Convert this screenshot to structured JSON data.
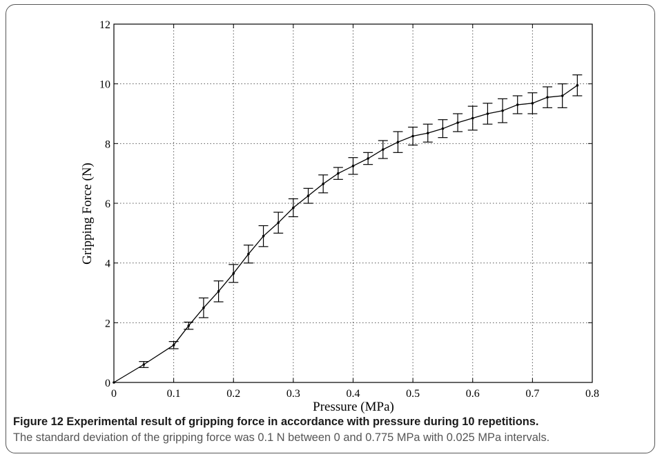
{
  "figure": {
    "caption_title": "Figure 12 Experimental result of gripping force in accordance with pressure during 10 repetitions.",
    "caption_body": "The standard deviation of the gripping force was 0.1 N between 0 and 0.775 MPa with 0.025 MPa intervals."
  },
  "chart_data": {
    "type": "line",
    "xlabel": "Pressure (MPa)",
    "ylabel": "Gripping Force (N)",
    "xlim": [
      0,
      0.8
    ],
    "ylim": [
      0,
      12
    ],
    "xticks": [
      "0",
      "0.1",
      "0.2",
      "0.3",
      "0.4",
      "0.5",
      "0.6",
      "0.7",
      "0.8"
    ],
    "yticks": [
      "0",
      "2",
      "4",
      "6",
      "8",
      "10",
      "12"
    ],
    "grid": true,
    "line_color": "#000000",
    "x": [
      0,
      0.05,
      0.1,
      0.125,
      0.15,
      0.175,
      0.2,
      0.225,
      0.25,
      0.275,
      0.3,
      0.325,
      0.35,
      0.375,
      0.4,
      0.425,
      0.45,
      0.475,
      0.5,
      0.525,
      0.55,
      0.575,
      0.6,
      0.625,
      0.65,
      0.675,
      0.7,
      0.725,
      0.75,
      0.775
    ],
    "y": [
      0,
      0.6,
      1.25,
      1.9,
      2.5,
      3.05,
      3.65,
      4.3,
      4.9,
      5.35,
      5.85,
      6.25,
      6.65,
      7.0,
      7.25,
      7.5,
      7.8,
      8.05,
      8.25,
      8.35,
      8.5,
      8.7,
      8.85,
      9.0,
      9.1,
      9.3,
      9.35,
      9.55,
      9.6,
      9.95
    ],
    "error": [
      0,
      0.1,
      0.12,
      0.12,
      0.33,
      0.35,
      0.3,
      0.3,
      0.35,
      0.35,
      0.3,
      0.25,
      0.3,
      0.2,
      0.28,
      0.2,
      0.3,
      0.35,
      0.3,
      0.3,
      0.3,
      0.3,
      0.4,
      0.35,
      0.4,
      0.3,
      0.35,
      0.35,
      0.4,
      0.35
    ]
  }
}
